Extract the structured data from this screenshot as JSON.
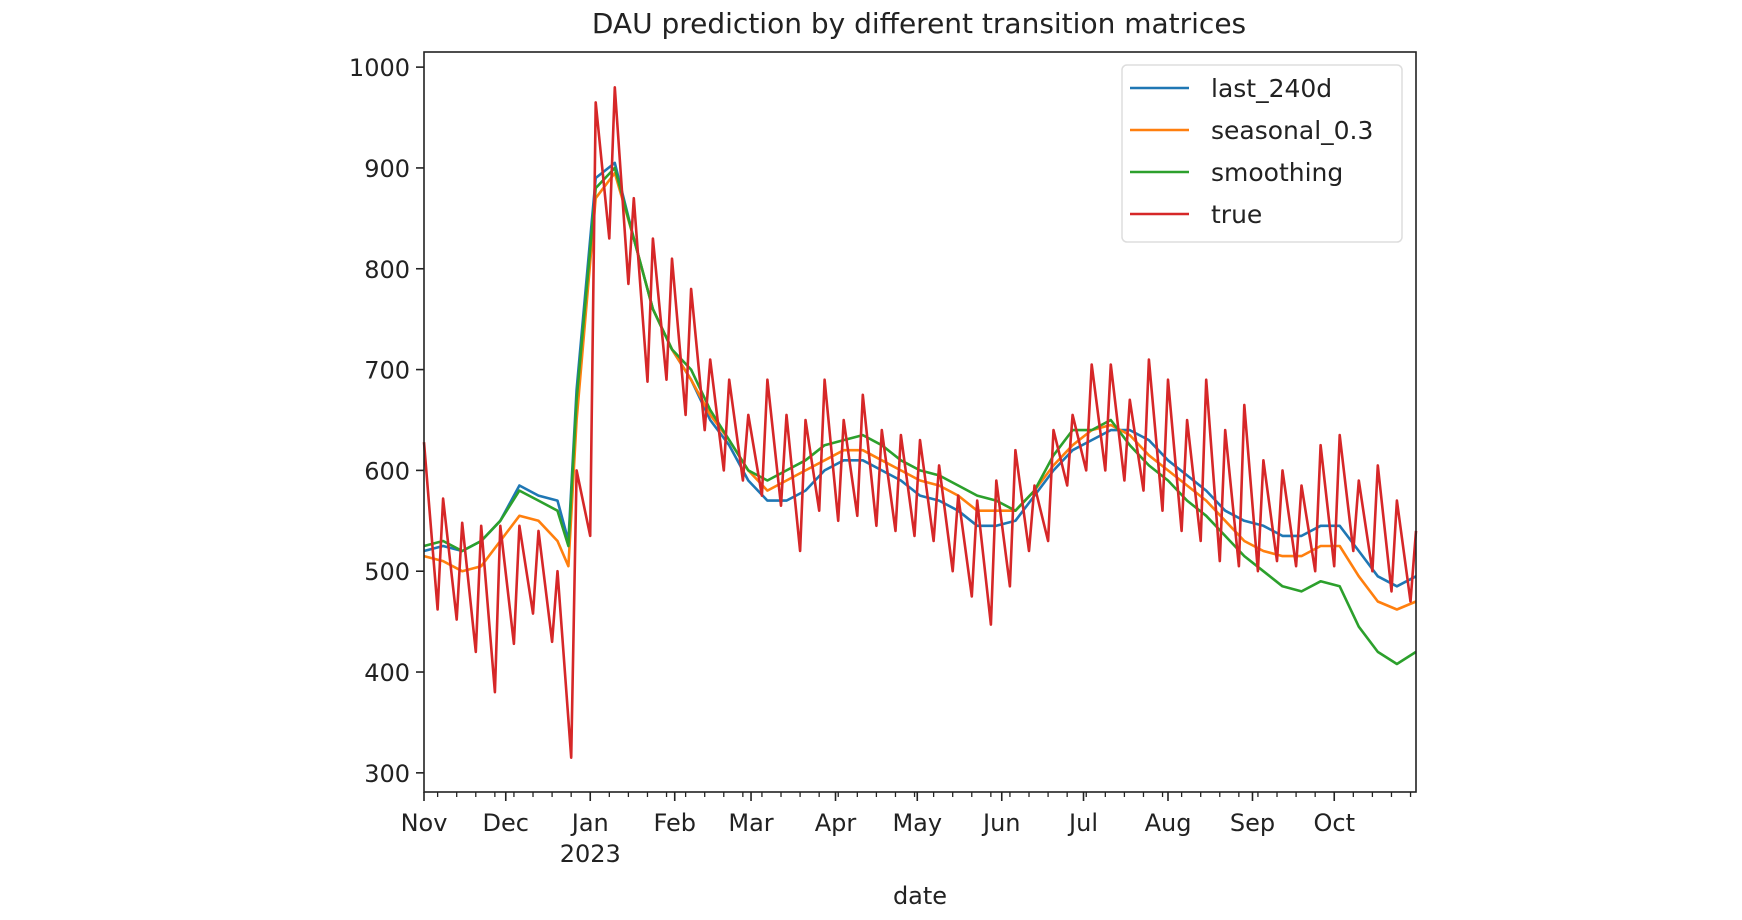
{
  "chart_data": {
    "type": "line",
    "title": "DAU prediction by different transition matrices",
    "xlabel": "date",
    "ylabel": "",
    "xlim": [
      "2022-11-01",
      "2023-10-31"
    ],
    "ylim": [
      281,
      1015
    ],
    "yticks": [
      300,
      400,
      500,
      600,
      700,
      800,
      900,
      1000
    ],
    "xticks": [
      {
        "date": "2022-11-01",
        "label": "Nov"
      },
      {
        "date": "2022-12-01",
        "label": "Dec"
      },
      {
        "date": "2023-01-01",
        "label": "Jan",
        "sublabel": "2023"
      },
      {
        "date": "2023-02-01",
        "label": "Feb"
      },
      {
        "date": "2023-03-01",
        "label": "Mar"
      },
      {
        "date": "2023-04-01",
        "label": "Apr"
      },
      {
        "date": "2023-05-01",
        "label": "May"
      },
      {
        "date": "2023-06-01",
        "label": "Jun"
      },
      {
        "date": "2023-07-01",
        "label": "Jul"
      },
      {
        "date": "2023-08-01",
        "label": "Aug"
      },
      {
        "date": "2023-09-01",
        "label": "Sep"
      },
      {
        "date": "2023-10-01",
        "label": "Oct"
      }
    ],
    "grid": false,
    "legend_position": "top-right",
    "pred_x": [
      "2022-11-01",
      "2022-11-08",
      "2022-11-15",
      "2022-11-22",
      "2022-11-29",
      "2022-12-06",
      "2022-12-13",
      "2022-12-20",
      "2022-12-24",
      "2022-12-27",
      "2023-01-03",
      "2023-01-10",
      "2023-01-17",
      "2023-01-24",
      "2023-01-31",
      "2023-02-07",
      "2023-02-14",
      "2023-02-21",
      "2023-02-28",
      "2023-03-07",
      "2023-03-14",
      "2023-03-21",
      "2023-03-28",
      "2023-04-04",
      "2023-04-11",
      "2023-04-18",
      "2023-04-25",
      "2023-05-02",
      "2023-05-09",
      "2023-05-16",
      "2023-05-23",
      "2023-05-30",
      "2023-06-06",
      "2023-06-13",
      "2023-06-20",
      "2023-06-27",
      "2023-07-04",
      "2023-07-11",
      "2023-07-18",
      "2023-07-25",
      "2023-08-01",
      "2023-08-08",
      "2023-08-15",
      "2023-08-22",
      "2023-08-29",
      "2023-09-05",
      "2023-09-12",
      "2023-09-19",
      "2023-09-26",
      "2023-10-03",
      "2023-10-10",
      "2023-10-17",
      "2023-10-24",
      "2023-10-31"
    ],
    "series": [
      {
        "name": "last_240d",
        "color": "#1f77b4",
        "values": [
          520,
          525,
          520,
          530,
          550,
          585,
          575,
          570,
          530,
          680,
          890,
          905,
          830,
          760,
          720,
          690,
          650,
          625,
          590,
          570,
          570,
          580,
          600,
          610,
          610,
          600,
          590,
          575,
          570,
          560,
          545,
          545,
          550,
          575,
          600,
          620,
          630,
          640,
          640,
          630,
          610,
          595,
          580,
          560,
          550,
          545,
          535,
          535,
          545,
          545,
          520,
          495,
          485,
          495
        ]
      },
      {
        "name": "seasonal_0.3",
        "color": "#ff7f0e",
        "values": [
          515,
          510,
          500,
          505,
          530,
          555,
          550,
          530,
          505,
          650,
          870,
          895,
          830,
          760,
          720,
          690,
          655,
          630,
          600,
          580,
          590,
          600,
          610,
          620,
          620,
          610,
          600,
          590,
          585,
          575,
          560,
          560,
          560,
          580,
          605,
          625,
          640,
          645,
          635,
          615,
          600,
          585,
          570,
          550,
          530,
          520,
          515,
          515,
          525,
          525,
          495,
          470,
          462,
          470
        ]
      },
      {
        "name": "smoothing",
        "color": "#2ca02c",
        "values": [
          525,
          530,
          520,
          530,
          550,
          580,
          570,
          560,
          525,
          670,
          880,
          900,
          830,
          760,
          720,
          700,
          660,
          630,
          600,
          590,
          600,
          610,
          625,
          630,
          635,
          625,
          610,
          600,
          595,
          585,
          575,
          570,
          560,
          580,
          615,
          640,
          640,
          650,
          625,
          605,
          590,
          570,
          555,
          535,
          515,
          500,
          485,
          480,
          490,
          485,
          445,
          420,
          408,
          420
        ]
      },
      {
        "name": "true",
        "color": "#d62728",
        "x": [
          "2022-11-01",
          "2022-11-06",
          "2022-11-08",
          "2022-11-13",
          "2022-11-15",
          "2022-11-20",
          "2022-11-22",
          "2022-11-27",
          "2022-11-29",
          "2022-12-04",
          "2022-12-06",
          "2022-12-11",
          "2022-12-13",
          "2022-12-18",
          "2022-12-20",
          "2022-12-25",
          "2022-12-27",
          "2023-01-01",
          "2023-01-03",
          "2023-01-08",
          "2023-01-10",
          "2023-01-15",
          "2023-01-17",
          "2023-01-22",
          "2023-01-24",
          "2023-01-29",
          "2023-01-31",
          "2023-02-05",
          "2023-02-07",
          "2023-02-12",
          "2023-02-14",
          "2023-02-19",
          "2023-02-21",
          "2023-02-26",
          "2023-02-28",
          "2023-03-05",
          "2023-03-07",
          "2023-03-12",
          "2023-03-14",
          "2023-03-19",
          "2023-03-21",
          "2023-03-26",
          "2023-03-28",
          "2023-04-02",
          "2023-04-04",
          "2023-04-09",
          "2023-04-11",
          "2023-04-16",
          "2023-04-18",
          "2023-04-23",
          "2023-04-25",
          "2023-04-30",
          "2023-05-02",
          "2023-05-07",
          "2023-05-09",
          "2023-05-14",
          "2023-05-16",
          "2023-05-21",
          "2023-05-23",
          "2023-05-28",
          "2023-05-30",
          "2023-06-04",
          "2023-06-06",
          "2023-06-11",
          "2023-06-13",
          "2023-06-18",
          "2023-06-20",
          "2023-06-25",
          "2023-06-27",
          "2023-07-02",
          "2023-07-04",
          "2023-07-09",
          "2023-07-11",
          "2023-07-16",
          "2023-07-18",
          "2023-07-23",
          "2023-07-25",
          "2023-07-30",
          "2023-08-01",
          "2023-08-06",
          "2023-08-08",
          "2023-08-13",
          "2023-08-15",
          "2023-08-20",
          "2023-08-22",
          "2023-08-27",
          "2023-08-29",
          "2023-09-03",
          "2023-09-05",
          "2023-09-10",
          "2023-09-12",
          "2023-09-17",
          "2023-09-19",
          "2023-09-24",
          "2023-09-26",
          "2023-10-01",
          "2023-10-03",
          "2023-10-08",
          "2023-10-10",
          "2023-10-15",
          "2023-10-17",
          "2023-10-22",
          "2023-10-24",
          "2023-10-29",
          "2023-10-31"
        ],
        "values": [
          628,
          462,
          572,
          452,
          548,
          420,
          545,
          380,
          545,
          428,
          545,
          458,
          540,
          430,
          500,
          315,
          600,
          535,
          965,
          830,
          980,
          785,
          870,
          688,
          830,
          690,
          810,
          655,
          780,
          640,
          710,
          600,
          690,
          590,
          655,
          575,
          690,
          565,
          655,
          520,
          650,
          560,
          690,
          550,
          650,
          555,
          675,
          545,
          640,
          540,
          635,
          535,
          630,
          530,
          605,
          500,
          575,
          475,
          570,
          447,
          590,
          485,
          620,
          520,
          585,
          530,
          640,
          585,
          655,
          600,
          705,
          600,
          705,
          590,
          670,
          580,
          710,
          560,
          690,
          540,
          650,
          530,
          690,
          510,
          640,
          505,
          665,
          500,
          610,
          510,
          600,
          505,
          585,
          500,
          625,
          505,
          635,
          520,
          590,
          500,
          605,
          480,
          570,
          470,
          540
        ]
      }
    ]
  }
}
